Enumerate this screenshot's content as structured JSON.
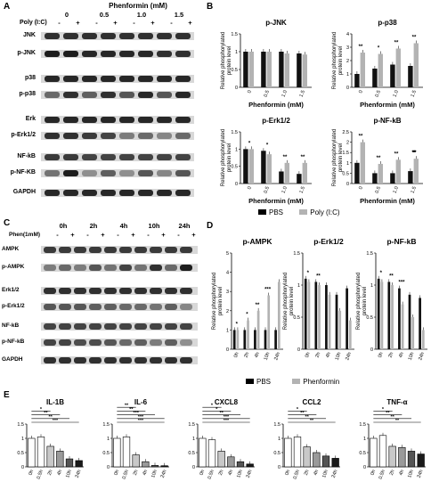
{
  "panels": {
    "A": {
      "label": "A",
      "header": "Phenformin (mM)",
      "poly_label": "Poly (I:C)",
      "doses": [
        "0",
        "0.5",
        "1.0",
        "1.5"
      ],
      "poly_signs": [
        "-",
        "+",
        "-",
        "+",
        "-",
        "+",
        "-",
        "+"
      ],
      "blots": [
        "JNK",
        "p-JNK",
        "p38",
        "p-p38",
        "Erk",
        "p-Erk1/2",
        "NF-kB",
        "p-NF-KB",
        "GAPDH"
      ]
    },
    "B": {
      "label": "B"
    },
    "C": {
      "label": "C",
      "times": [
        "0h",
        "2h",
        "4h",
        "10h",
        "24h"
      ],
      "phen_label": "Phen(1mM)",
      "phen_signs": [
        "-",
        "+",
        "-",
        "+",
        "-",
        "+",
        "-",
        "+",
        "-",
        "+"
      ],
      "blots": [
        "AMPK",
        "p-AMPK",
        "Erk1/2",
        "p-Erk1/2",
        "NF-kB",
        "p-NF-kB",
        "GAPDH"
      ]
    },
    "D": {
      "label": "D"
    },
    "E": {
      "label": "E"
    }
  },
  "legend_B": {
    "items": [
      "PBS",
      "Poly (I:C)"
    ],
    "colors": [
      "#000000",
      "#b3b3b3"
    ]
  },
  "legend_D": {
    "items": [
      "PBS",
      "Phenformin"
    ],
    "colors": [
      "#000000",
      "#b3b3b3"
    ]
  },
  "chart_data": [
    {
      "id": "B1",
      "type": "bar",
      "title": "p-JNK",
      "ylabel": "Relative phosphorylated protein level",
      "xlabel": "Phenformin (mM)",
      "categories": [
        "0",
        "0.5",
        "1.0",
        "1.5"
      ],
      "ylim": [
        0,
        1.5
      ],
      "yticks": [
        0,
        0.5,
        1.0,
        1.5
      ],
      "series": [
        {
          "name": "PBS",
          "values": [
            1.0,
            1.0,
            1.0,
            0.95
          ]
        },
        {
          "name": "Poly (I:C)",
          "values": [
            1.0,
            1.0,
            0.95,
            0.92
          ]
        }
      ],
      "annotations": []
    },
    {
      "id": "B2",
      "type": "bar",
      "title": "p-p38",
      "ylabel": "Relative phosphorylated protein level",
      "xlabel": "Phenformin (mM)",
      "categories": [
        "0",
        "0.5",
        "1.0",
        "1.5"
      ],
      "ylim": [
        0,
        4
      ],
      "yticks": [
        0,
        1,
        2,
        3,
        4
      ],
      "series": [
        {
          "name": "PBS",
          "values": [
            1.0,
            1.4,
            1.7,
            1.6
          ]
        },
        {
          "name": "Poly (I:C)",
          "values": [
            2.6,
            2.5,
            2.9,
            3.3
          ]
        }
      ],
      "annotations": [
        "**",
        "*",
        "**",
        "**"
      ]
    },
    {
      "id": "B3",
      "type": "bar",
      "title": "p-Erk1/2",
      "ylabel": "Relative phosphorylated protein level",
      "xlabel": "Phenformin (mM)",
      "categories": [
        "0",
        "0.5",
        "1.0",
        "1.5"
      ],
      "ylim": [
        0,
        1.5
      ],
      "yticks": [
        0,
        0.5,
        1.0,
        1.5
      ],
      "series": [
        {
          "name": "PBS",
          "values": [
            1.0,
            0.95,
            0.35,
            0.28
          ]
        },
        {
          "name": "Poly (I:C)",
          "values": [
            1.0,
            0.85,
            0.6,
            0.6
          ]
        }
      ],
      "annotations": [
        "*",
        "*",
        "**",
        "**"
      ]
    },
    {
      "id": "B4",
      "type": "bar",
      "title": "p-NF-kB",
      "ylabel": "Relative phosphorylated protein level",
      "xlabel": "Phenformin (mM)",
      "categories": [
        "0",
        "0.5",
        "1.0",
        "1.5"
      ],
      "ylim": [
        0,
        2.5
      ],
      "yticks": [
        0,
        0.5,
        1.0,
        1.5,
        2.0,
        2.5
      ],
      "series": [
        {
          "name": "PBS",
          "values": [
            1.0,
            0.5,
            0.5,
            0.6
          ]
        },
        {
          "name": "Poly (I:C)",
          "values": [
            2.0,
            0.95,
            1.15,
            1.2
          ]
        }
      ],
      "annotations": [
        "**",
        "**",
        "**",
        "**",
        "*",
        "**",
        "**"
      ]
    },
    {
      "id": "D1",
      "type": "bar",
      "title": "p-AMPK",
      "ylabel": "Relative phosphorylated protein level",
      "categories": [
        "0h",
        "2h",
        "4h",
        "10h",
        "24h"
      ],
      "ylim": [
        0,
        5
      ],
      "yticks": [
        0,
        1,
        2,
        3,
        4,
        5
      ],
      "series": [
        {
          "name": "PBS",
          "values": [
            1.0,
            1.0,
            1.0,
            1.0,
            1.0
          ]
        },
        {
          "name": "Phenformin",
          "values": [
            1.0,
            1.5,
            2.0,
            2.8,
            3.5
          ]
        }
      ],
      "annotations": [
        "*",
        "*",
        "**",
        "***"
      ]
    },
    {
      "id": "D2",
      "type": "bar",
      "title": "p-Erk1/2",
      "ylabel": "Relative phosphorylated protein level",
      "categories": [
        "0h",
        "2h",
        "4h",
        "10h",
        "24h"
      ],
      "ylim": [
        0,
        1.5
      ],
      "yticks": [
        0,
        0.5,
        1.0,
        1.5
      ],
      "series": [
        {
          "name": "PBS",
          "values": [
            1.1,
            1.05,
            1.0,
            0.85,
            0.95
          ]
        },
        {
          "name": "Phenformin",
          "values": [
            1.05,
            1.0,
            0.85,
            0.6,
            0.45
          ]
        }
      ],
      "annotations": [
        "*",
        "**"
      ]
    },
    {
      "id": "D3",
      "type": "bar",
      "title": "p-NF-kB",
      "ylabel": "Relative phosphorylated protein level",
      "categories": [
        "0h",
        "2h",
        "4h",
        "10h",
        "24h"
      ],
      "ylim": [
        0,
        1.5
      ],
      "yticks": [
        0,
        0.5,
        1.0,
        1.5
      ],
      "series": [
        {
          "name": "PBS",
          "values": [
            1.1,
            1.05,
            0.95,
            0.85,
            0.8
          ]
        },
        {
          "name": "Phenformin",
          "values": [
            1.05,
            1.0,
            0.7,
            0.5,
            0.3
          ]
        }
      ],
      "annotations": [
        "*",
        "**",
        "***"
      ]
    },
    {
      "id": "E1",
      "type": "bar",
      "title": "IL-1B",
      "categories": [
        "0h",
        "0.5h",
        "2h",
        "4h",
        "10h",
        "24h"
      ],
      "ylim": [
        0,
        1.5
      ],
      "yticks": [
        0,
        0.5,
        1.0,
        1.5
      ],
      "values": [
        1.0,
        1.05,
        0.72,
        0.55,
        0.28,
        0.22
      ],
      "colors": [
        "#ffffff",
        "#ffffff",
        "#c8c8c8",
        "#9a9a9a",
        "#555555",
        "#1a1a1a"
      ],
      "annotations": [
        "*",
        "**",
        "**",
        "***"
      ]
    },
    {
      "id": "E2",
      "type": "bar",
      "title": "IL-6",
      "categories": [
        "0h",
        "0.5h",
        "2h",
        "4h",
        "10h",
        "24h"
      ],
      "ylim": [
        0,
        1.5
      ],
      "yticks": [
        0,
        0.5,
        1.0,
        1.5
      ],
      "values": [
        1.0,
        1.05,
        0.42,
        0.18,
        0.05,
        0.04
      ],
      "colors": [
        "#ffffff",
        "#ffffff",
        "#c8c8c8",
        "#9a9a9a",
        "#555555",
        "#1a1a1a"
      ],
      "annotations": [
        "**",
        "**",
        "***",
        "***",
        "***"
      ]
    },
    {
      "id": "E3",
      "type": "bar",
      "title": "CXCL8",
      "categories": [
        "0h",
        "0.5h",
        "2h",
        "4h",
        "10h",
        "24h"
      ],
      "ylim": [
        0,
        1.5
      ],
      "yticks": [
        0,
        0.5,
        1.0,
        1.5
      ],
      "values": [
        1.0,
        0.95,
        0.55,
        0.35,
        0.18,
        0.1
      ],
      "colors": [
        "#ffffff",
        "#ffffff",
        "#c8c8c8",
        "#9a9a9a",
        "#555555",
        "#1a1a1a"
      ],
      "annotations": [
        "*",
        "*",
        "**",
        "***",
        "***"
      ]
    },
    {
      "id": "E4",
      "type": "bar",
      "title": "CCL2",
      "categories": [
        "0h",
        "0.5h",
        "2h",
        "4h",
        "10h",
        "24h"
      ],
      "ylim": [
        0,
        1.5
      ],
      "yticks": [
        0,
        0.5,
        1.0,
        1.5
      ],
      "values": [
        1.0,
        1.05,
        0.7,
        0.5,
        0.38,
        0.3
      ],
      "colors": [
        "#ffffff",
        "#ffffff",
        "#c8c8c8",
        "#9a9a9a",
        "#555555",
        "#1a1a1a"
      ],
      "annotations": [
        "*",
        "**",
        "**",
        "**"
      ]
    },
    {
      "id": "E5",
      "type": "bar",
      "title": "TNF-α",
      "categories": [
        "0h",
        "0.5h",
        "2h",
        "4h",
        "10h",
        "24h"
      ],
      "ylim": [
        0,
        1.5
      ],
      "yticks": [
        0,
        0.5,
        1.0,
        1.5
      ],
      "values": [
        1.0,
        1.1,
        0.72,
        0.68,
        0.55,
        0.45
      ],
      "colors": [
        "#ffffff",
        "#ffffff",
        "#c8c8c8",
        "#9a9a9a",
        "#555555",
        "#1a1a1a"
      ],
      "annotations": [
        "*",
        "**",
        "**",
        "**"
      ]
    }
  ]
}
